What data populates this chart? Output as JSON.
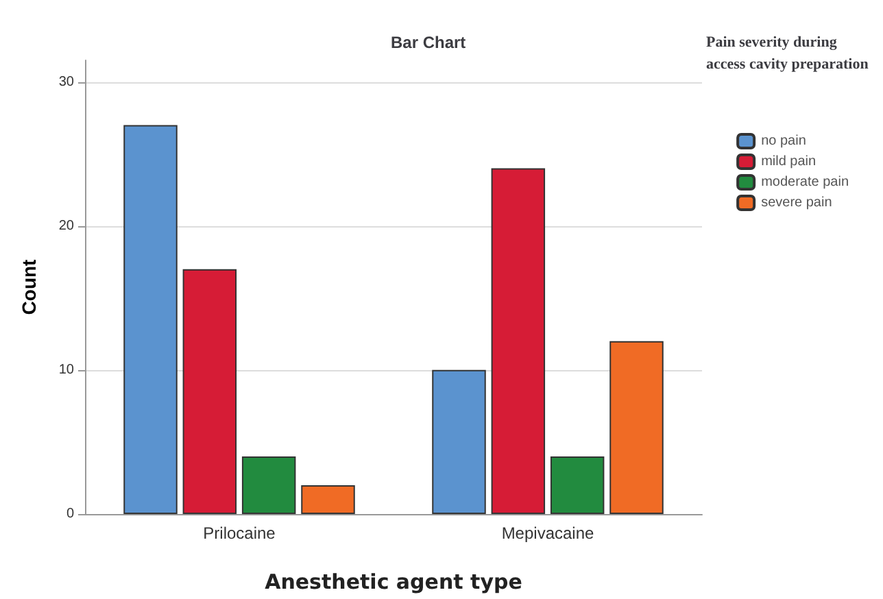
{
  "chart_data": {
    "type": "bar",
    "title": "Bar Chart",
    "xlabel": "Anesthetic agent type",
    "ylabel": "Count",
    "legend_title": "Pain severity during access cavity preparation",
    "categories": [
      "Prilocaine",
      "Mepivacaine"
    ],
    "series": [
      {
        "name": "no pain",
        "color": "#5b93cf",
        "values": [
          27,
          10
        ]
      },
      {
        "name": "mild pain",
        "color": "#d61c36",
        "values": [
          17,
          24
        ]
      },
      {
        "name": "moderate pain",
        "color": "#228b3f",
        "values": [
          4,
          4
        ]
      },
      {
        "name": "severe pain",
        "color": "#f06b25",
        "values": [
          2,
          12
        ]
      }
    ],
    "ylim": [
      0,
      31.5
    ],
    "yticks": [
      0,
      10,
      20,
      30
    ],
    "grid": "y",
    "legend": "right"
  }
}
